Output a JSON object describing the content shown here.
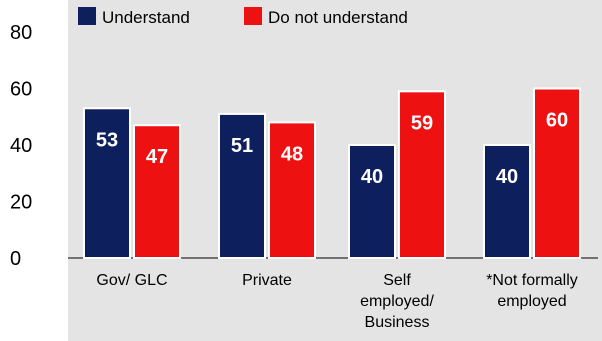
{
  "chart_data": {
    "type": "bar",
    "title": "",
    "xlabel": "",
    "ylabel": "",
    "ylim": [
      0,
      80
    ],
    "yticks": [
      0,
      20,
      40,
      60,
      80
    ],
    "grid": false,
    "legend_position": "top",
    "categories": [
      [
        "Gov/ GLC"
      ],
      [
        "Private"
      ],
      [
        "Self",
        "employed/",
        "Business"
      ],
      [
        "*Not formally",
        "employed"
      ]
    ],
    "series": [
      {
        "name": "Understand",
        "color": "#0d1f5c",
        "values": [
          53,
          51,
          40,
          40
        ]
      },
      {
        "name": "Do not understand",
        "color": "#ee1111",
        "values": [
          47,
          48,
          59,
          60
        ]
      }
    ],
    "plot_background": "#e4e4e4"
  }
}
